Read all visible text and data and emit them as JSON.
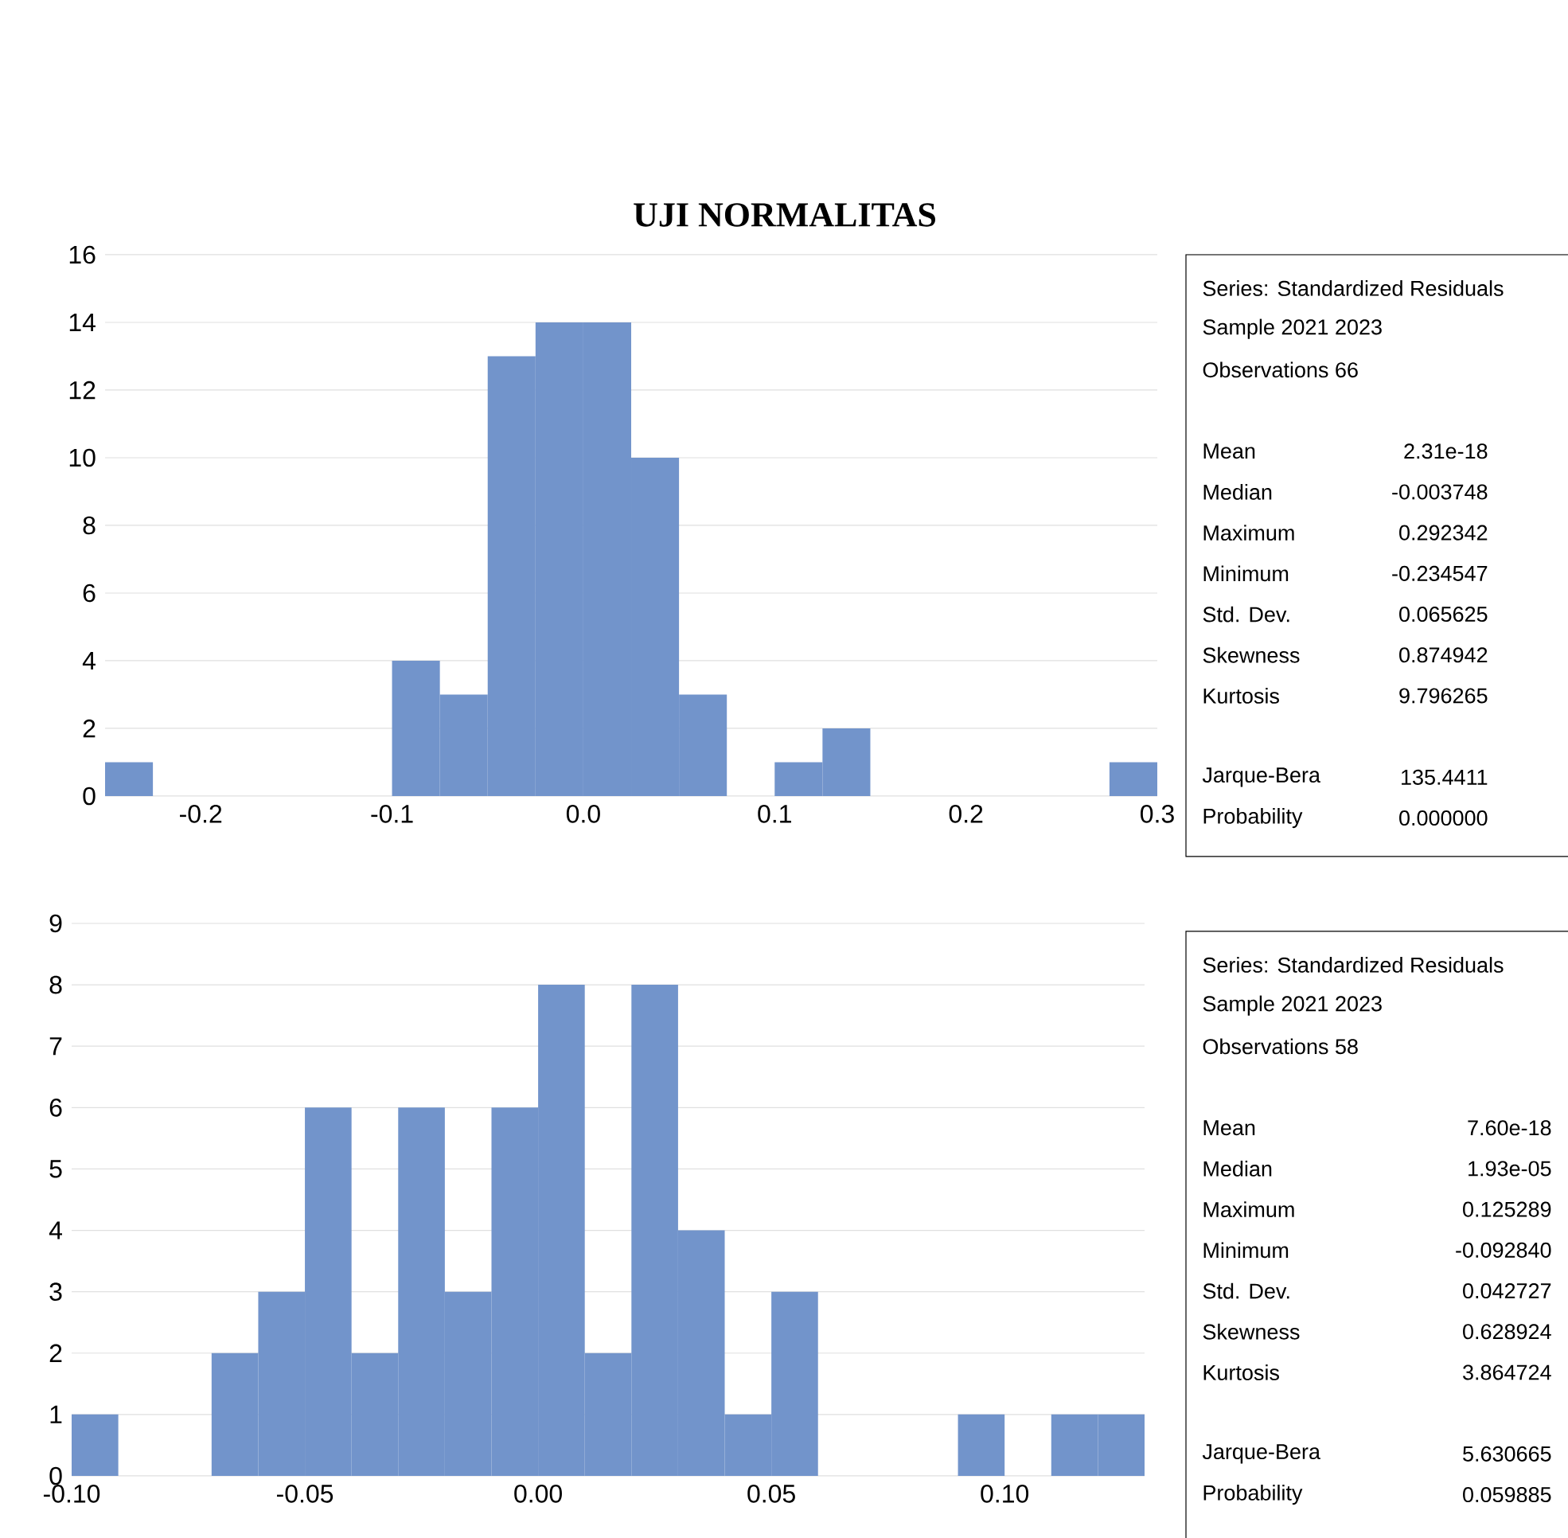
{
  "chart_data": [
    {
      "type": "histogram",
      "title": "UJI NORMALITAS",
      "color": "#7294cb",
      "bins": [
        -0.25,
        -0.225,
        -0.2,
        -0.175,
        -0.15,
        -0.125,
        -0.1,
        -0.075,
        -0.05,
        -0.025,
        0,
        0.025,
        0.05,
        0.075,
        0.1,
        0.125,
        0.15,
        0.175,
        0.2,
        0.225,
        0.25,
        0.275,
        0.3
      ],
      "values": [
        1,
        0,
        0,
        0,
        0,
        0,
        4,
        3,
        13,
        14,
        14,
        10,
        3,
        0,
        1,
        2,
        0,
        0,
        0,
        0,
        0,
        1
      ],
      "xlim": [
        -0.25,
        0.3
      ],
      "ylim": [
        0,
        16
      ],
      "xticks": [
        -0.2,
        -0.1,
        {
          "value": 0,
          "label": "0.0"
        },
        0.1,
        0.2,
        0.3
      ],
      "yticks": [
        0,
        2,
        4,
        6,
        8,
        10,
        12,
        14,
        16
      ],
      "grid": "y",
      "annotations": [
        "Series: Standardized Residuals",
        "Sample 2021 2023",
        "Observations 66",
        "Mean",
        "2.31e-18",
        "Median",
        "-0.003748",
        "Maximum",
        "0.292342",
        "Minimum",
        "-0.234547",
        "Std. Dev.",
        "0.065625",
        "Skewness",
        "0.874942",
        "Kurtosis",
        "9.796265",
        "Jarque-Bera",
        "135.4411",
        "Probability",
        "0.000000"
      ]
    },
    {
      "type": "histogram",
      "color": "#7294cb",
      "bins": [
        -0.1,
        -0.09,
        -0.08,
        -0.07,
        -0.06,
        -0.05,
        -0.04,
        -0.03,
        -0.02,
        -0.01,
        0,
        0.01,
        0.02,
        0.03,
        0.04,
        0.05,
        0.06,
        0.07,
        0.08,
        0.09,
        0.1,
        0.11,
        0.12,
        0.13
      ],
      "values": [
        1,
        0,
        0,
        2,
        3,
        6,
        2,
        6,
        3,
        6,
        8,
        2,
        8,
        4,
        1,
        3,
        0,
        0,
        0,
        1,
        0,
        1,
        1
      ],
      "xlim": [
        -0.1,
        0.13
      ],
      "ylim": [
        0,
        9
      ],
      "xticks": [
        {
          "value": -0.1,
          "label": "-0.10"
        },
        {
          "value": -0.05,
          "label": "-0.05"
        },
        {
          "value": 0,
          "label": "0.00"
        },
        {
          "value": 0.05,
          "label": "0.05"
        },
        {
          "value": 0.1,
          "label": "0.10"
        }
      ],
      "yticks": [
        0,
        1,
        2,
        3,
        4,
        5,
        6,
        7,
        8,
        9
      ],
      "grid": "y",
      "annotations": [
        "Series: Standardized Residuals",
        "Sample 2021 2023",
        "Observations 58",
        "Mean",
        "7.60e-18",
        "Median",
        "1.93e-05",
        "Maximum",
        "0.125289",
        "Minimum",
        "-0.092840",
        "Std. Dev.",
        "0.042727",
        "Skewness",
        "0.628924",
        "Kurtosis",
        "3.864724",
        "Jarque-Bera",
        "5.630665",
        "Probability",
        "0.059885"
      ]
    }
  ]
}
